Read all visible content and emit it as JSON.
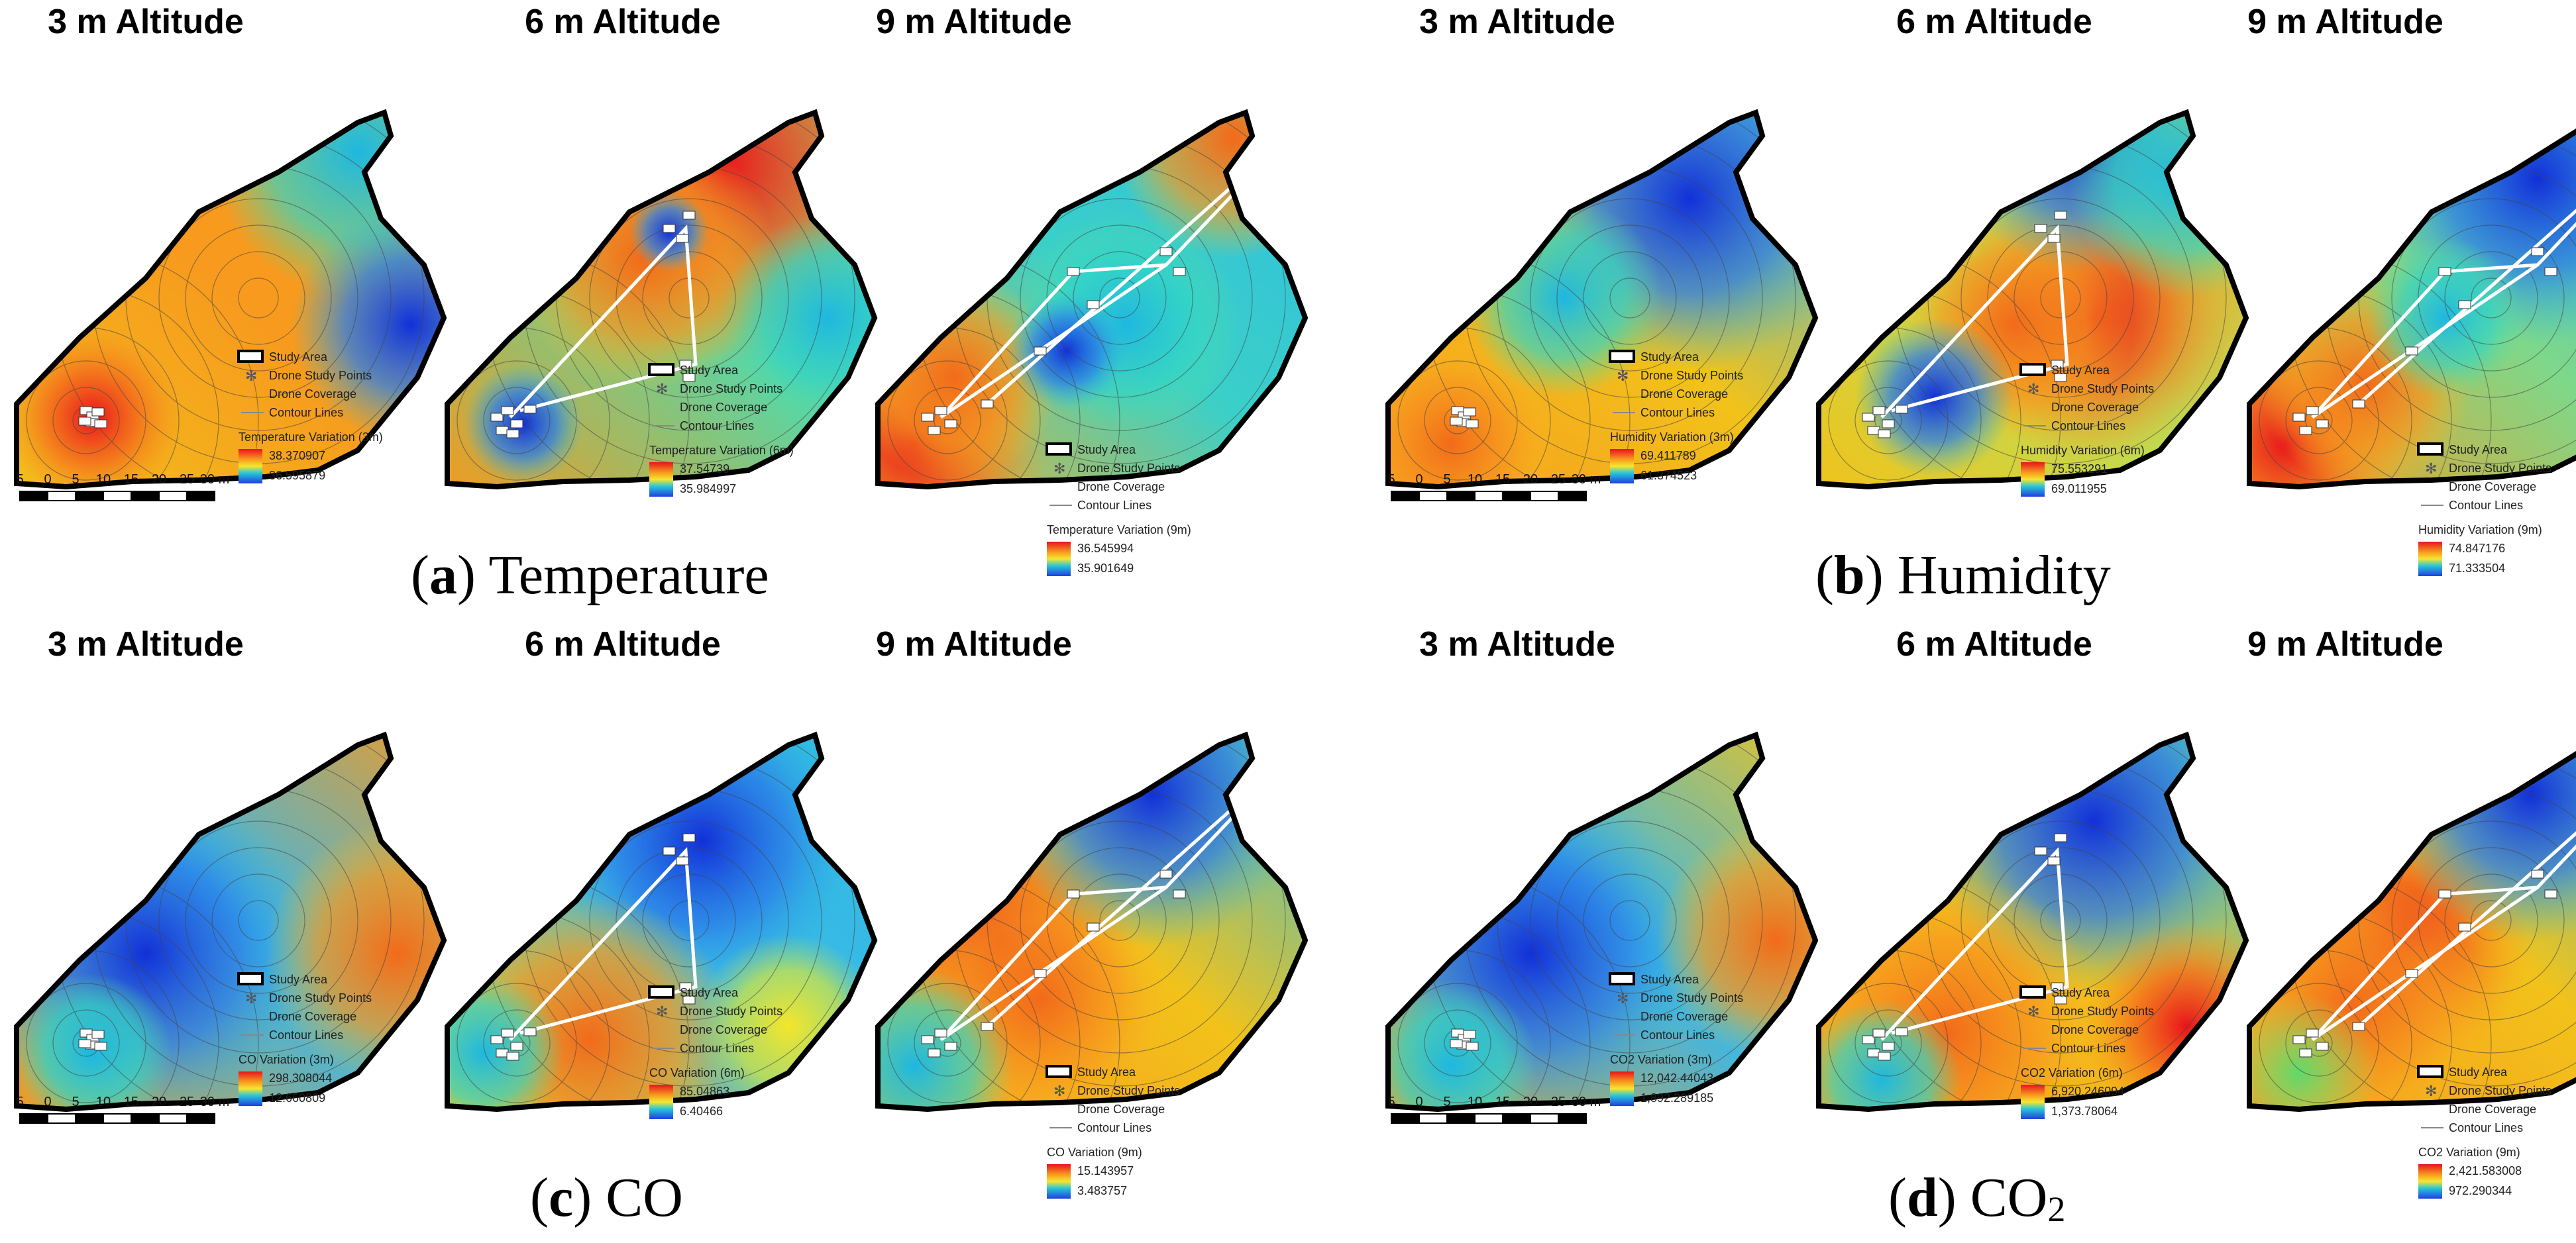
{
  "figure": {
    "legend": {
      "study_area": "Study Area",
      "drone_points": "Drone Study Points",
      "drone_coverage": "Drone Coverage",
      "contour_lines": "Contour Lines"
    },
    "scale_bar": {
      "ticks": [
        "5",
        "0",
        "5",
        "10",
        "15",
        "20",
        "25",
        "30 m"
      ]
    },
    "panels": [
      {
        "letter": "a",
        "caption": "Temperature",
        "maps": [
          {
            "title": "3 m Altitude",
            "variable": "Temperature Variation (3m)",
            "max": "38.370907",
            "min": "36.595879"
          },
          {
            "title": "6 m Altitude",
            "variable": "Temperature Variation (6m)",
            "max": "37.54739",
            "min": "35.984997"
          },
          {
            "title": "9 m Altitude",
            "variable": "Temperature Variation (9m)",
            "max": "36.545994",
            "min": "35.901649"
          }
        ]
      },
      {
        "letter": "b",
        "caption": "Humidity",
        "maps": [
          {
            "title": "3 m Altitude",
            "variable": "Humidity Variation (3m)",
            "max": "69.411789",
            "min": "61.374523"
          },
          {
            "title": "6 m Altitude",
            "variable": "Humidity Variation (6m)",
            "max": "75.553291",
            "min": "69.011955"
          },
          {
            "title": "9 m Altitude",
            "variable": "Humidity Variation (9m)",
            "max": "74.847176",
            "min": "71.333504"
          }
        ]
      },
      {
        "letter": "c",
        "caption": "CO",
        "maps": [
          {
            "title": "3 m Altitude",
            "variable": "CO Variation (3m)",
            "max": "298.308044",
            "min": "12.660809"
          },
          {
            "title": "6 m Altitude",
            "variable": "CO Variation (6m)",
            "max": "85.04863",
            "min": "6.40466"
          },
          {
            "title": "9 m Altitude",
            "variable": "CO Variation (9m)",
            "max": "15.143957",
            "min": "3.483757"
          }
        ]
      },
      {
        "letter": "d",
        "caption": "CO",
        "caption_sub": "2",
        "maps": [
          {
            "title": "3 m Altitude",
            "variable": "CO2 Variation (3m)",
            "max": "12,042.44043",
            "min": "1,892.289185"
          },
          {
            "title": "6 m Altitude",
            "variable": "CO2 Variation (6m)",
            "max": "6,920.246094",
            "min": "1,373.78064"
          },
          {
            "title": "9 m Altitude",
            "variable": "CO2 Variation (9m)",
            "max": "2,421.583008",
            "min": "972.290344"
          }
        ]
      }
    ]
  }
}
